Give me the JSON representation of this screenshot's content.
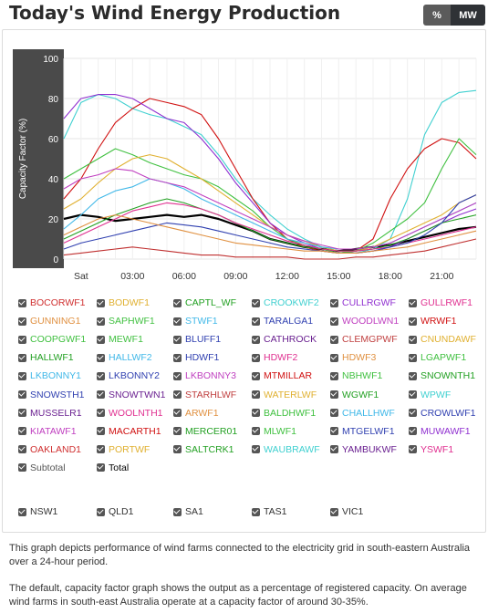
{
  "header": {
    "title": "Today's Wind Energy Production"
  },
  "unit_toggle": {
    "percent_label": "%",
    "mw_label": "MW"
  },
  "chart_data": {
    "type": "line",
    "ylabel": "Capacity Factor (%)",
    "xlabel": "",
    "ylim": [
      0,
      100
    ],
    "yticks": [
      "100",
      "80",
      "60",
      "40",
      "20",
      "0"
    ],
    "categories": [
      "Sat",
      "03:00",
      "06:00",
      "09:00",
      "12:00",
      "15:00",
      "18:00",
      "21:00"
    ],
    "grid": true,
    "series": [
      {
        "name": "Total",
        "color": "#000000",
        "x": [
          0,
          1,
          2,
          3,
          4,
          5,
          6,
          7,
          8,
          9,
          10,
          11,
          12,
          13,
          14,
          15,
          16,
          17,
          18,
          19,
          20,
          21,
          22,
          23,
          24
        ],
        "values": [
          20,
          22,
          21,
          19,
          20,
          21,
          22,
          21,
          22,
          20,
          17,
          14,
          10,
          8,
          6,
          5,
          4,
          5,
          6,
          7,
          9,
          11,
          13,
          15,
          16
        ]
      },
      {
        "name": "CROOKWF2",
        "color": "#40d0d0",
        "x": [
          0,
          1,
          2,
          3,
          4,
          5,
          6,
          7,
          8,
          9,
          10,
          11,
          12,
          13,
          14,
          15,
          16,
          17,
          18,
          19,
          20,
          21,
          22,
          23,
          24
        ],
        "values": [
          60,
          78,
          82,
          80,
          75,
          72,
          70,
          66,
          62,
          52,
          40,
          30,
          22,
          15,
          10,
          6,
          4,
          3,
          5,
          10,
          30,
          62,
          78,
          83,
          84
        ]
      },
      {
        "name": "STARHLWF",
        "color": "#d01010",
        "x": [
          0,
          1,
          2,
          3,
          4,
          5,
          6,
          7,
          8,
          9,
          10,
          11,
          12,
          13,
          14,
          15,
          16,
          17,
          18,
          19,
          20,
          21,
          22,
          23,
          24
        ],
        "values": [
          30,
          40,
          55,
          68,
          75,
          80,
          78,
          76,
          72,
          60,
          45,
          30,
          18,
          10,
          6,
          4,
          3,
          4,
          10,
          30,
          45,
          55,
          60,
          58,
          50
        ]
      },
      {
        "name": "CULLRGWF",
        "color": "#9030d0",
        "x": [
          0,
          1,
          2,
          3,
          4,
          5,
          6,
          7,
          8,
          9,
          10,
          11,
          12,
          13,
          14,
          15,
          16,
          17,
          18,
          19,
          20,
          21,
          22,
          23,
          24
        ],
        "values": [
          70,
          80,
          82,
          82,
          80,
          75,
          70,
          68,
          60,
          50,
          38,
          28,
          18,
          12,
          8,
          5,
          3,
          3,
          4,
          6,
          10,
          14,
          18,
          22,
          25
        ]
      },
      {
        "name": "SAPHWF1",
        "color": "#40c040",
        "x": [
          0,
          1,
          2,
          3,
          4,
          5,
          6,
          7,
          8,
          9,
          10,
          11,
          12,
          13,
          14,
          15,
          16,
          17,
          18,
          19,
          20,
          21,
          22,
          23,
          24
        ],
        "values": [
          40,
          45,
          50,
          55,
          52,
          48,
          45,
          42,
          40,
          36,
          30,
          24,
          16,
          10,
          7,
          5,
          3,
          4,
          8,
          14,
          20,
          28,
          45,
          60,
          52
        ]
      },
      {
        "name": "BODWF1",
        "color": "#e0b030",
        "x": [
          0,
          1,
          2,
          3,
          4,
          5,
          6,
          7,
          8,
          9,
          10,
          11,
          12,
          13,
          14,
          15,
          16,
          17,
          18,
          19,
          20,
          21,
          22,
          23,
          24
        ],
        "values": [
          25,
          30,
          38,
          45,
          50,
          52,
          50,
          45,
          40,
          34,
          28,
          22,
          16,
          12,
          9,
          6,
          4,
          4,
          6,
          10,
          14,
          18,
          22,
          28,
          32
        ]
      },
      {
        "name": "HALLWF2",
        "color": "#40b8e8",
        "x": [
          0,
          1,
          2,
          3,
          4,
          5,
          6,
          7,
          8,
          9,
          10,
          11,
          12,
          13,
          14,
          15,
          16,
          17,
          18,
          19,
          20,
          21,
          22,
          23,
          24
        ],
        "values": [
          15,
          22,
          30,
          34,
          36,
          40,
          38,
          35,
          30,
          26,
          22,
          18,
          14,
          10,
          8,
          6,
          5,
          5,
          6,
          8,
          12,
          16,
          20,
          24,
          28
        ]
      },
      {
        "name": "CAPTL_WF",
        "color": "#22a022",
        "x": [
          0,
          1,
          2,
          3,
          4,
          5,
          6,
          7,
          8,
          9,
          10,
          11,
          12,
          13,
          14,
          15,
          16,
          17,
          18,
          19,
          20,
          21,
          22,
          23,
          24
        ],
        "values": [
          10,
          14,
          18,
          22,
          25,
          28,
          30,
          28,
          25,
          22,
          18,
          14,
          10,
          8,
          6,
          5,
          4,
          4,
          5,
          7,
          10,
          14,
          18,
          20,
          22
        ]
      },
      {
        "name": "WOODLWN1",
        "color": "#c040c0",
        "x": [
          0,
          1,
          2,
          3,
          4,
          5,
          6,
          7,
          8,
          9,
          10,
          11,
          12,
          13,
          14,
          15,
          16,
          17,
          18,
          19,
          20,
          21,
          22,
          23,
          24
        ],
        "values": [
          35,
          40,
          42,
          45,
          44,
          40,
          38,
          36,
          32,
          28,
          24,
          20,
          16,
          12,
          9,
          7,
          5,
          5,
          6,
          8,
          12,
          16,
          20,
          24,
          28
        ]
      },
      {
        "name": "GULLRWF1",
        "color": "#e03090",
        "x": [
          0,
          1,
          2,
          3,
          4,
          5,
          6,
          7,
          8,
          9,
          10,
          11,
          12,
          13,
          14,
          15,
          16,
          17,
          18,
          19,
          20,
          21,
          22,
          23,
          24
        ],
        "values": [
          8,
          12,
          16,
          20,
          24,
          26,
          28,
          27,
          25,
          22,
          18,
          15,
          12,
          9,
          7,
          5,
          4,
          4,
          5,
          6,
          8,
          10,
          12,
          14,
          16
        ]
      },
      {
        "name": "TARALGA1",
        "color": "#3040b0",
        "x": [
          0,
          1,
          2,
          3,
          4,
          5,
          6,
          7,
          8,
          9,
          10,
          11,
          12,
          13,
          14,
          15,
          16,
          17,
          18,
          19,
          20,
          21,
          22,
          23,
          24
        ],
        "values": [
          5,
          8,
          10,
          12,
          14,
          16,
          18,
          17,
          16,
          14,
          12,
          10,
          8,
          6,
          5,
          4,
          3,
          3,
          4,
          6,
          8,
          12,
          18,
          28,
          32
        ]
      },
      {
        "name": "GUNNING1",
        "color": "#e09040",
        "x": [
          0,
          1,
          2,
          3,
          4,
          5,
          6,
          7,
          8,
          9,
          10,
          11,
          12,
          13,
          14,
          15,
          16,
          17,
          18,
          19,
          20,
          21,
          22,
          23,
          24
        ],
        "values": [
          12,
          16,
          20,
          22,
          20,
          18,
          16,
          14,
          12,
          10,
          8,
          7,
          6,
          5,
          4,
          4,
          3,
          3,
          4,
          5,
          6,
          8,
          10,
          12,
          14
        ]
      },
      {
        "name": "MUSSELR1",
        "color": "#c03030",
        "x": [
          0,
          1,
          2,
          3,
          4,
          5,
          6,
          7,
          8,
          9,
          10,
          11,
          12,
          13,
          14,
          15,
          16,
          17,
          18,
          19,
          20,
          21,
          22,
          23,
          24
        ],
        "values": [
          2,
          3,
          4,
          5,
          6,
          5,
          4,
          3,
          2,
          2,
          1,
          1,
          1,
          1,
          0,
          0,
          0,
          1,
          1,
          2,
          3,
          4,
          6,
          8,
          10
        ]
      }
    ]
  },
  "checkboxes": [
    {
      "label": "BOCORWF1",
      "color": "#d03030"
    },
    {
      "label": "BODWF1",
      "color": "#e0b030"
    },
    {
      "label": "CAPTL_WF",
      "color": "#22a022"
    },
    {
      "label": "CROOKWF2",
      "color": "#40d0d0"
    },
    {
      "label": "CULLRGWF",
      "color": "#9030d0"
    },
    {
      "label": "GULLRWF1",
      "color": "#e03090"
    },
    {
      "label": "GUNNING1",
      "color": "#e09040"
    },
    {
      "label": "SAPHWF1",
      "color": "#40c040"
    },
    {
      "label": "STWF1",
      "color": "#40b8e8"
    },
    {
      "label": "TARALGA1",
      "color": "#3040b0"
    },
    {
      "label": "WOODLWN1",
      "color": "#c040c0"
    },
    {
      "label": "WRWF1",
      "color": "#d01010"
    },
    {
      "label": "COOPGWF1",
      "color": "#40c040"
    },
    {
      "label": "MEWF1",
      "color": "#40c040"
    },
    {
      "label": "BLUFF1",
      "color": "#3040b0"
    },
    {
      "label": "CATHROCK",
      "color": "#6a2090"
    },
    {
      "label": "CLEMGPWF",
      "color": "#c04040"
    },
    {
      "label": "CNUNDAWF",
      "color": "#e0b030"
    },
    {
      "label": "HALLWF1",
      "color": "#22a022"
    },
    {
      "label": "HALLWF2",
      "color": "#40b8e8"
    },
    {
      "label": "HDWF1",
      "color": "#3040b0"
    },
    {
      "label": "HDWF2",
      "color": "#e03090"
    },
    {
      "label": "HDWF3",
      "color": "#e09040"
    },
    {
      "label": "LGAPWF1",
      "color": "#40c040"
    },
    {
      "label": "LKBONNY1",
      "color": "#40b8e8"
    },
    {
      "label": "LKBONNY2",
      "color": "#3040b0"
    },
    {
      "label": "LKBONNY3",
      "color": "#c040c0"
    },
    {
      "label": "MTMILLAR",
      "color": "#d01010"
    },
    {
      "label": "NBHWF1",
      "color": "#40c040"
    },
    {
      "label": "SNOWNTH1",
      "color": "#22a022"
    },
    {
      "label": "SNOWSTH1",
      "color": "#3040b0"
    },
    {
      "label": "SNOWTWN1",
      "color": "#6a2090"
    },
    {
      "label": "STARHLWF",
      "color": "#c04040"
    },
    {
      "label": "WATERLWF",
      "color": "#e0b030"
    },
    {
      "label": "WGWF1",
      "color": "#22a022"
    },
    {
      "label": "WPWF",
      "color": "#40d0d0"
    },
    {
      "label": "MUSSELR1",
      "color": "#6a2090"
    },
    {
      "label": "WOOLNTH1",
      "color": "#e03090"
    },
    {
      "label": "ARWF1",
      "color": "#e09040"
    },
    {
      "label": "BALDHWF1",
      "color": "#40c040"
    },
    {
      "label": "CHALLHWF",
      "color": "#40b8e8"
    },
    {
      "label": "CROWLWF1",
      "color": "#3040b0"
    },
    {
      "label": "KIATAWF1",
      "color": "#c040c0"
    },
    {
      "label": "MACARTH1",
      "color": "#d01010"
    },
    {
      "label": "MERCER01",
      "color": "#22a022"
    },
    {
      "label": "MLWF1",
      "color": "#40c040"
    },
    {
      "label": "MTGELWF1",
      "color": "#3040b0"
    },
    {
      "label": "MUWAWF1",
      "color": "#9030d0"
    },
    {
      "label": "OAKLAND1",
      "color": "#d03030"
    },
    {
      "label": "PORTWF",
      "color": "#e0b030"
    },
    {
      "label": "SALTCRK1",
      "color": "#22a022"
    },
    {
      "label": "WAUBRAWF",
      "color": "#40d0d0"
    },
    {
      "label": "YAMBUKWF",
      "color": "#6a2090"
    },
    {
      "label": "YSWF1",
      "color": "#e03090"
    },
    {
      "label": "Subtotal",
      "color": "#555555"
    },
    {
      "label": "Total",
      "color": "#000000"
    }
  ],
  "regions": [
    {
      "label": "NSW1",
      "color": "#333333"
    },
    {
      "label": "QLD1",
      "color": "#333333"
    },
    {
      "label": "SA1",
      "color": "#333333"
    },
    {
      "label": "TAS1",
      "color": "#333333"
    },
    {
      "label": "VIC1",
      "color": "#333333"
    }
  ],
  "description": {
    "p1": "This graph depicts performance of wind farms connected to the electricity grid in south-eastern Australia over a 24-hour period.",
    "p2": "The default, capacity factor graph shows the output as a percentage of registered capacity. On average wind farms in south-east Australia operate at a capacity factor of around 30-35%."
  }
}
